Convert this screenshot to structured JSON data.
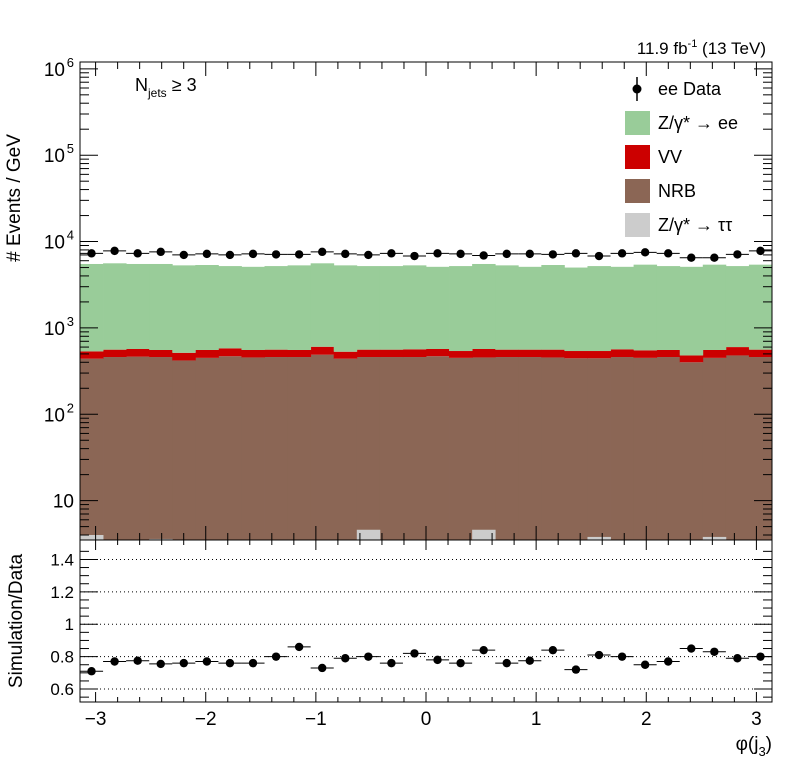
{
  "lumi_label": "11.9 fb",
  "lumi_sup": "-1",
  "lumi_suffix": " (13 TeV)",
  "selection_label": {
    "main": "N",
    "sub": "jets",
    "tail": " ≥ 3"
  },
  "legend": [
    {
      "key": "data",
      "text": "ee Data",
      "color": "#000000",
      "style": "marker"
    },
    {
      "key": "zee",
      "text": "Z/γ* → ee",
      "color": "#99cc99",
      "style": "box"
    },
    {
      "key": "vv",
      "text": "VV",
      "color": "#cc0000",
      "style": "box"
    },
    {
      "key": "nrb",
      "text": "NRB",
      "color": "#8b6655",
      "style": "box"
    },
    {
      "key": "ztt",
      "text": "Z/γ* → ττ",
      "color": "#cccccc",
      "style": "box"
    }
  ],
  "chart_data": [
    {
      "type": "bar",
      "stacked": true,
      "ylabel": "# Events / GeV",
      "yscale": "log",
      "ylim": [
        3.5,
        1200000
      ],
      "ytick_labels": [
        "10",
        "10^2",
        "10^3",
        "10^4",
        "10^5",
        "10^6"
      ],
      "xlim": [
        -3.1416,
        3.1416
      ],
      "nbins": 30,
      "series": [
        {
          "name": "Z/γ* → ττ",
          "color": "#cccccc",
          "values": [
            4.0,
            0,
            0,
            3.6,
            0,
            0,
            3.2,
            0,
            0,
            0,
            0,
            0,
            4.6,
            0,
            0,
            0,
            0,
            4.6,
            0,
            0,
            0,
            0,
            3.8,
            0,
            0,
            0,
            0,
            3.8,
            0,
            0
          ]
        },
        {
          "name": "NRB",
          "color": "#8b6655",
          "values": [
            440,
            460,
            465,
            460,
            420,
            450,
            470,
            455,
            460,
            460,
            490,
            440,
            460,
            460,
            460,
            470,
            450,
            455,
            460,
            460,
            455,
            445,
            445,
            460,
            450,
            460,
            400,
            450,
            480,
            460
          ]
        },
        {
          "name": "VV",
          "color": "#cc0000",
          "values": [
            95,
            100,
            105,
            95,
            95,
            105,
            110,
            100,
            100,
            95,
            115,
            90,
            100,
            100,
            105,
            100,
            90,
            115,
            100,
            100,
            105,
            95,
            95,
            105,
            100,
            95,
            80,
            105,
            120,
            100
          ]
        },
        {
          "name": "Z/γ* → ee",
          "color": "#99cc99",
          "values": [
            4965,
            5040,
            4930,
            4945,
            4785,
            4795,
            4620,
            4545,
            4640,
            4745,
            4995,
            4770,
            4640,
            4640,
            4735,
            4530,
            4660,
            4930,
            4740,
            4540,
            4790,
            4460,
            4660,
            4535,
            4850,
            4645,
            4620,
            4845,
            4600,
            4840
          ]
        }
      ],
      "data_name": "ee Data",
      "data_values": [
        7300,
        7800,
        7300,
        7600,
        7000,
        7200,
        7000,
        7200,
        7100,
        7100,
        7600,
        7200,
        7000,
        7300,
        6800,
        7300,
        7200,
        6900,
        7200,
        7200,
        7100,
        7300,
        6800,
        7300,
        7500,
        7300,
        6500,
        6500,
        7100,
        7800
      ]
    },
    {
      "type": "scatter",
      "ylabel": "Simulation/Data",
      "xlabel": "φ(j3)",
      "ylim": [
        0.52,
        1.52
      ],
      "yticks": [
        0.6,
        0.8,
        1,
        1.2,
        1.4
      ],
      "ytick_labels": [
        "0.6",
        "0.8",
        "1",
        "1.2",
        "1.4"
      ],
      "grid_y": [
        0.6,
        0.8,
        1,
        1.2,
        1.4
      ],
      "xlim": [
        -3.1416,
        3.1416
      ],
      "xticks": [
        -3,
        -2,
        -1,
        0,
        1,
        2,
        3
      ],
      "xtick_labels": [
        "−3",
        "−2",
        "−1",
        "0",
        "1",
        "2",
        "3"
      ],
      "ratio_values": [
        0.71,
        0.77,
        0.775,
        0.755,
        0.76,
        0.77,
        0.76,
        0.76,
        0.8,
        0.86,
        0.73,
        0.79,
        0.8,
        0.76,
        0.82,
        0.78,
        0.76,
        0.84,
        0.76,
        0.775,
        0.84,
        0.72,
        0.81,
        0.8,
        0.75,
        0.77,
        0.85,
        0.83,
        0.79,
        0.8
      ],
      "ratio_errors": [
        0.02,
        0.02,
        0.02,
        0.02,
        0.02,
        0.02,
        0.02,
        0.02,
        0.02,
        0.02,
        0.02,
        0.02,
        0.02,
        0.02,
        0.02,
        0.02,
        0.02,
        0.02,
        0.02,
        0.02,
        0.02,
        0.02,
        0.02,
        0.02,
        0.02,
        0.02,
        0.02,
        0.02,
        0.02,
        0.02
      ]
    }
  ]
}
